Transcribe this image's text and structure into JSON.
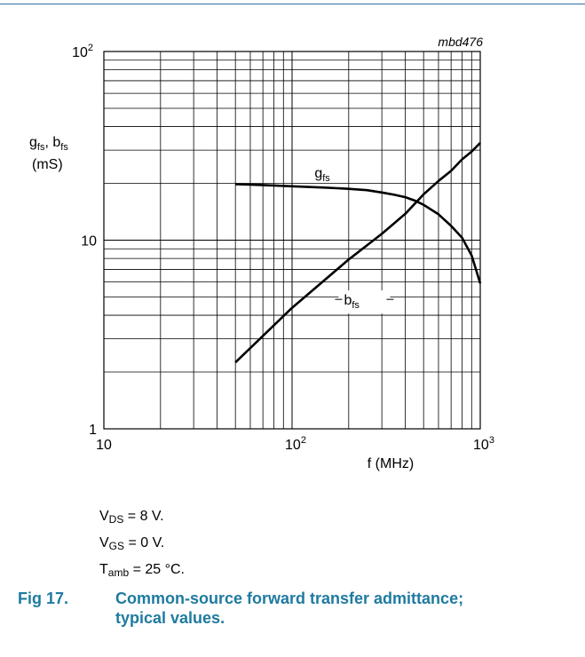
{
  "chart_data": {
    "type": "line",
    "figure_id": "mbd476",
    "xlabel": "f (MHz)",
    "ylabel_line1": "g",
    "ylabel_sub1": "fs",
    "ylabel_sep": ", b",
    "ylabel_sub2": "fs",
    "ylabel_line2": "(mS)",
    "x_scale": "log",
    "y_scale": "log",
    "xlim": [
      10,
      1000
    ],
    "ylim": [
      1,
      100
    ],
    "x_ticks": [
      {
        "value": 10,
        "base": "10",
        "exp": ""
      },
      {
        "value": 100,
        "base": "10",
        "exp": "2"
      },
      {
        "value": 1000,
        "base": "10",
        "exp": "3"
      }
    ],
    "y_ticks": [
      {
        "value": 1,
        "base": "1",
        "exp": ""
      },
      {
        "value": 10,
        "base": "10",
        "exp": ""
      },
      {
        "value": 100,
        "base": "10",
        "exp": "2"
      }
    ],
    "grid": true,
    "series": [
      {
        "name": "g",
        "name_sub": "fs",
        "label_at": [
          150,
          21.5
        ],
        "points": [
          [
            50,
            19.8
          ],
          [
            60,
            19.7
          ],
          [
            80,
            19.5
          ],
          [
            100,
            19.3
          ],
          [
            150,
            19.0
          ],
          [
            200,
            18.7
          ],
          [
            250,
            18.4
          ],
          [
            300,
            17.9
          ],
          [
            350,
            17.4
          ],
          [
            400,
            16.9
          ],
          [
            450,
            16.2
          ],
          [
            500,
            15.4
          ],
          [
            600,
            13.7
          ],
          [
            700,
            11.9
          ],
          [
            800,
            10.3
          ],
          [
            900,
            8.3
          ],
          [
            1000,
            5.9
          ]
        ]
      },
      {
        "name": "b",
        "name_sub": "fs",
        "label_at": [
          215,
          4.55
        ],
        "points": [
          [
            50,
            2.25
          ],
          [
            100,
            4.38
          ],
          [
            200,
            7.9
          ],
          [
            300,
            10.8
          ],
          [
            400,
            13.8
          ],
          [
            500,
            17.5
          ],
          [
            600,
            20.6
          ],
          [
            700,
            23.3
          ],
          [
            800,
            26.8
          ],
          [
            900,
            29.5
          ],
          [
            1000,
            32.8
          ]
        ]
      }
    ]
  },
  "conditions": [
    {
      "sym": "V",
      "sub": "DS",
      "rest": " = 8 V."
    },
    {
      "sym": "V",
      "sub": "GS",
      "rest": " = 0 V."
    },
    {
      "sym": "T",
      "sub": "amb",
      "rest": " = 25 °C."
    }
  ],
  "caption": {
    "number": "Fig 17.",
    "line1": "Common-source forward transfer admittance;",
    "line2": "typical values."
  },
  "colors": {
    "rule": "#2b6ea8",
    "caption": "#1f7aa0"
  }
}
